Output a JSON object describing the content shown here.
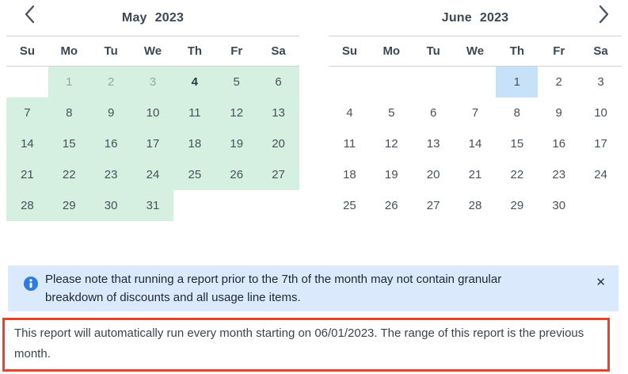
{
  "left_calendar": {
    "month": "May",
    "year": "2023",
    "nav_icon": "chevron-left-icon",
    "weekdays": [
      "Su",
      "Mo",
      "Tu",
      "We",
      "Th",
      "Fr",
      "Sa"
    ],
    "days": [
      {
        "d": ""
      },
      {
        "d": "1",
        "s": "range muted"
      },
      {
        "d": "2",
        "s": "range muted"
      },
      {
        "d": "3",
        "s": "range muted"
      },
      {
        "d": "4",
        "s": "range today"
      },
      {
        "d": "5",
        "s": "range"
      },
      {
        "d": "6",
        "s": "range"
      },
      {
        "d": "7",
        "s": "range"
      },
      {
        "d": "8",
        "s": "range"
      },
      {
        "d": "9",
        "s": "range"
      },
      {
        "d": "10",
        "s": "range"
      },
      {
        "d": "11",
        "s": "range"
      },
      {
        "d": "12",
        "s": "range"
      },
      {
        "d": "13",
        "s": "range"
      },
      {
        "d": "14",
        "s": "range"
      },
      {
        "d": "15",
        "s": "range"
      },
      {
        "d": "16",
        "s": "range"
      },
      {
        "d": "17",
        "s": "range"
      },
      {
        "d": "18",
        "s": "range"
      },
      {
        "d": "19",
        "s": "range"
      },
      {
        "d": "20",
        "s": "range"
      },
      {
        "d": "21",
        "s": "range"
      },
      {
        "d": "22",
        "s": "range"
      },
      {
        "d": "23",
        "s": "range"
      },
      {
        "d": "24",
        "s": "range"
      },
      {
        "d": "25",
        "s": "range"
      },
      {
        "d": "26",
        "s": "range"
      },
      {
        "d": "27",
        "s": "range"
      },
      {
        "d": "28",
        "s": "range"
      },
      {
        "d": "29",
        "s": "range"
      },
      {
        "d": "30",
        "s": "range"
      },
      {
        "d": "31",
        "s": "range"
      },
      {
        "d": ""
      },
      {
        "d": ""
      },
      {
        "d": ""
      }
    ]
  },
  "right_calendar": {
    "month": "June",
    "year": "2023",
    "nav_icon": "chevron-right-icon",
    "weekdays": [
      "Su",
      "Mo",
      "Tu",
      "We",
      "Th",
      "Fr",
      "Sa"
    ],
    "days": [
      {
        "d": ""
      },
      {
        "d": ""
      },
      {
        "d": ""
      },
      {
        "d": ""
      },
      {
        "d": "1",
        "s": "selected"
      },
      {
        "d": "2"
      },
      {
        "d": "3"
      },
      {
        "d": "4"
      },
      {
        "d": "5"
      },
      {
        "d": "6"
      },
      {
        "d": "7"
      },
      {
        "d": "8"
      },
      {
        "d": "9"
      },
      {
        "d": "10"
      },
      {
        "d": "11"
      },
      {
        "d": "12"
      },
      {
        "d": "13"
      },
      {
        "d": "14"
      },
      {
        "d": "15"
      },
      {
        "d": "16"
      },
      {
        "d": "17"
      },
      {
        "d": "18"
      },
      {
        "d": "19"
      },
      {
        "d": "20"
      },
      {
        "d": "21"
      },
      {
        "d": "22"
      },
      {
        "d": "23"
      },
      {
        "d": "24"
      },
      {
        "d": "25"
      },
      {
        "d": "26"
      },
      {
        "d": "27"
      },
      {
        "d": "28"
      },
      {
        "d": "29"
      },
      {
        "d": "30"
      },
      {
        "d": ""
      }
    ]
  },
  "banner": {
    "icon": "info-icon",
    "text": "Please note that running a report prior to the 7th of the month may not contain granular breakdown of discounts and all usage line items.",
    "close_glyph": "✕"
  },
  "notice": {
    "text": "This report will automatically run every month starting on 06/01/2023. The range of this report is the previous month."
  },
  "colors": {
    "range_highlight": "#d5f0e1",
    "selected_day": "#c6e1f8",
    "banner_background": "#dbe9fc",
    "info_icon": "#2e7ce0",
    "notice_border": "#e8432a"
  }
}
